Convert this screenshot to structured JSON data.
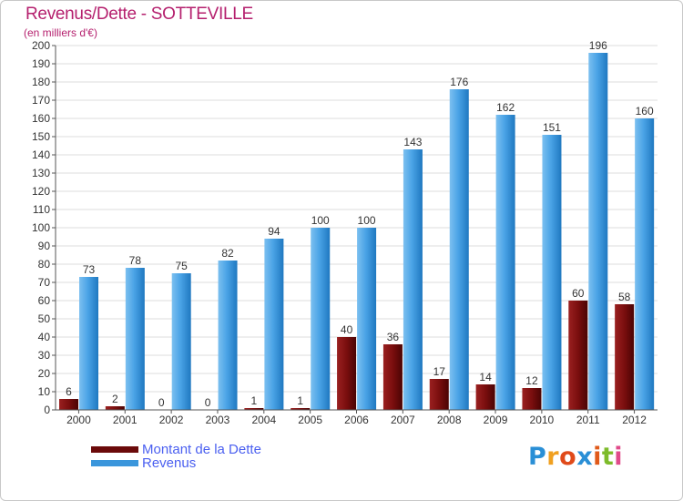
{
  "header": {
    "title": "Revenus/Dette - SOTTEVILLE",
    "subtitle": "(en milliers d'€)"
  },
  "logo": {
    "letters": [
      "P",
      "r",
      "o",
      "x",
      "i",
      "t",
      "i"
    ],
    "colors": [
      "#2a8fd6",
      "#f0a020",
      "#e04a1a",
      "#2a8fd6",
      "#e05a1a",
      "#7dbb2a",
      "#e04a8a"
    ]
  },
  "colors": {
    "dette": "#6b0a0a",
    "revenus": "#3a96dc",
    "axis_text": "#333333",
    "grid": "#dddddd",
    "title": "#b5206e",
    "legend_text": "#4a5ff0"
  },
  "chart_data": {
    "type": "bar",
    "categories": [
      "2000",
      "2001",
      "2002",
      "2003",
      "2004",
      "2005",
      "2006",
      "2007",
      "2008",
      "2009",
      "2010",
      "2011",
      "2012"
    ],
    "series": [
      {
        "name": "Montant de la Dette",
        "values": [
          6,
          2,
          0,
          0,
          1,
          1,
          40,
          36,
          17,
          14,
          12,
          60,
          58
        ]
      },
      {
        "name": "Revenus",
        "values": [
          73,
          78,
          75,
          82,
          94,
          100,
          100,
          143,
          176,
          162,
          151,
          196,
          160
        ]
      }
    ],
    "title": "Revenus/Dette - SOTTEVILLE",
    "ylabel": "(en milliers d'€)",
    "ylim": [
      0,
      200
    ],
    "yticks": [
      0,
      10,
      20,
      30,
      40,
      50,
      60,
      70,
      80,
      90,
      100,
      110,
      120,
      130,
      140,
      150,
      160,
      170,
      180,
      190,
      200
    ],
    "grid": true,
    "legend_position": "bottom-left"
  }
}
